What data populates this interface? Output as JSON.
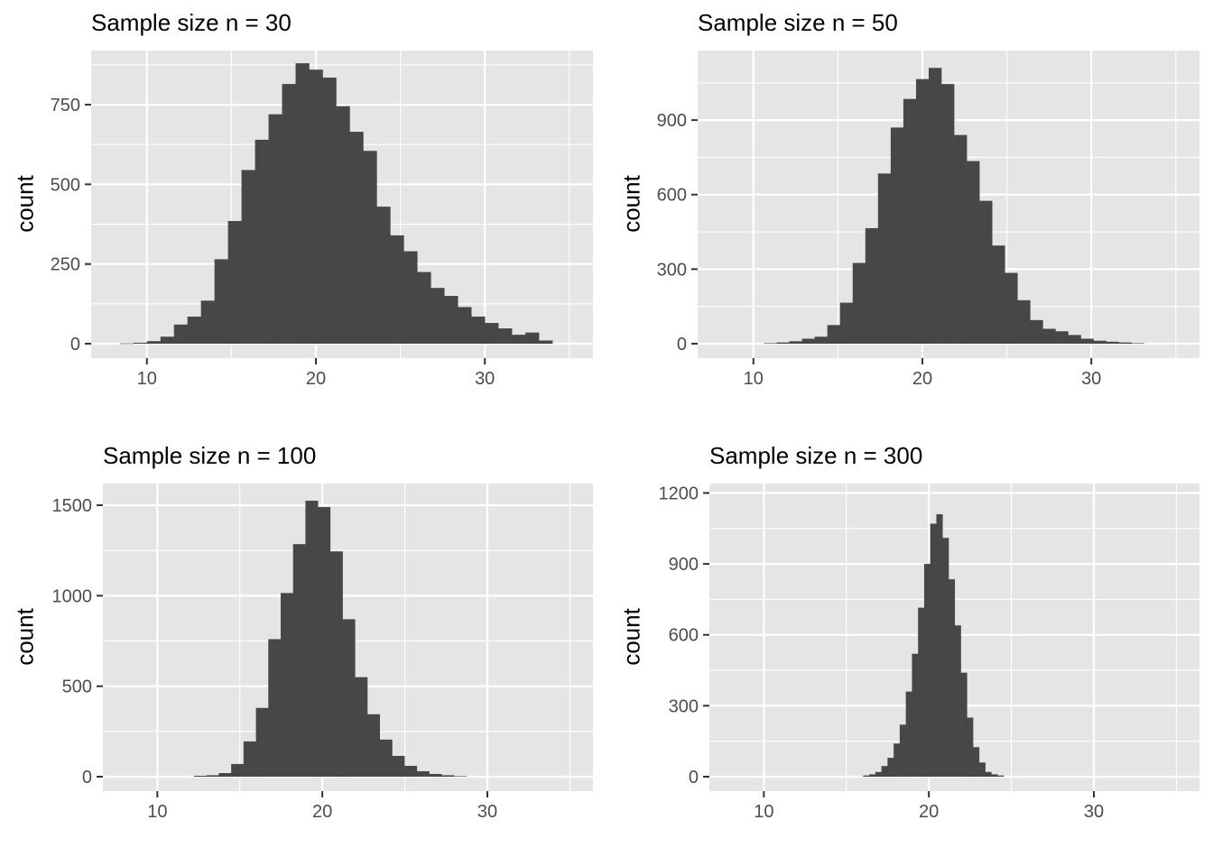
{
  "colors": {
    "panel_bg": "#e5e5e5",
    "grid": "#ffffff",
    "bar": "#474747",
    "tick_text": "#4d4d4d",
    "tick_mark": "#333333"
  },
  "chart_data": [
    {
      "type": "bar",
      "title": "Sample size n = 30",
      "ylabel": "count",
      "xlim": [
        6.7,
        36.4
      ],
      "ylim": [
        0,
        920
      ],
      "xticks": [
        10,
        20,
        30
      ],
      "yticks": [
        0,
        250,
        500,
        750
      ],
      "bin_width": 0.8,
      "x": [
        8.8,
        9.6,
        10.4,
        11.2,
        12.0,
        12.8,
        13.6,
        14.4,
        15.2,
        16.0,
        16.8,
        17.6,
        18.4,
        19.2,
        20.0,
        20.8,
        21.6,
        22.4,
        23.2,
        24.0,
        24.8,
        25.6,
        26.4,
        27.2,
        28.0,
        28.8,
        29.6,
        30.4,
        31.2,
        32.0,
        32.8,
        33.6
      ],
      "values": [
        1,
        3,
        8,
        22,
        60,
        85,
        135,
        265,
        385,
        545,
        640,
        720,
        815,
        880,
        860,
        835,
        745,
        665,
        605,
        430,
        340,
        290,
        225,
        175,
        150,
        115,
        85,
        65,
        48,
        28,
        35,
        10
      ]
    },
    {
      "type": "bar",
      "title": "Sample size n = 50",
      "ylabel": "count",
      "xlim": [
        6.7,
        36.4
      ],
      "ylim": [
        0,
        1180
      ],
      "xticks": [
        10,
        20,
        30
      ],
      "yticks": [
        0,
        300,
        600,
        900
      ],
      "bin_width": 0.75,
      "x": [
        11.0,
        11.75,
        12.5,
        13.25,
        14.0,
        14.75,
        15.5,
        16.25,
        17.0,
        17.75,
        18.5,
        19.25,
        20.0,
        20.75,
        21.5,
        22.25,
        23.0,
        23.75,
        24.5,
        25.25,
        26.0,
        26.75,
        27.5,
        28.25,
        29.0,
        29.75,
        30.5,
        31.25,
        32.0,
        32.75
      ],
      "values": [
        2,
        5,
        10,
        20,
        28,
        75,
        165,
        325,
        465,
        685,
        870,
        985,
        1065,
        1110,
        1045,
        840,
        735,
        575,
        395,
        285,
        175,
        95,
        60,
        50,
        35,
        20,
        12,
        8,
        5,
        2
      ]
    },
    {
      "type": "bar",
      "title": "Sample size n = 100",
      "ylabel": "count",
      "xlim": [
        6.7,
        36.4
      ],
      "ylim": [
        0,
        1620
      ],
      "xticks": [
        10,
        20,
        30
      ],
      "yticks": [
        0,
        500,
        1000,
        1500
      ],
      "bin_width": 0.75,
      "x": [
        12.6,
        13.35,
        14.1,
        14.85,
        15.6,
        16.35,
        17.1,
        17.85,
        18.6,
        19.35,
        20.1,
        20.85,
        21.6,
        22.35,
        23.1,
        23.85,
        24.6,
        25.35,
        26.1,
        26.85,
        27.6,
        28.35
      ],
      "values": [
        5,
        8,
        20,
        70,
        195,
        380,
        760,
        1015,
        1285,
        1525,
        1490,
        1245,
        870,
        550,
        345,
        205,
        115,
        60,
        30,
        15,
        8,
        3
      ]
    },
    {
      "type": "bar",
      "title": "Sample size n = 300",
      "ylabel": "count",
      "xlim": [
        6.7,
        36.4
      ],
      "ylim": [
        0,
        1240
      ],
      "xticks": [
        10,
        20,
        30
      ],
      "yticks": [
        0,
        300,
        600,
        900,
        1200
      ],
      "bin_width": 0.37,
      "x": [
        16.2,
        16.57,
        16.94,
        17.31,
        17.68,
        18.05,
        18.42,
        18.79,
        19.16,
        19.53,
        19.9,
        20.27,
        20.64,
        21.01,
        21.38,
        21.75,
        22.12,
        22.49,
        22.86,
        23.23,
        23.6,
        23.97,
        24.34
      ],
      "values": [
        5,
        10,
        20,
        45,
        80,
        140,
        220,
        360,
        520,
        715,
        900,
        1070,
        1110,
        1010,
        835,
        640,
        440,
        250,
        125,
        60,
        20,
        10,
        5
      ]
    }
  ]
}
